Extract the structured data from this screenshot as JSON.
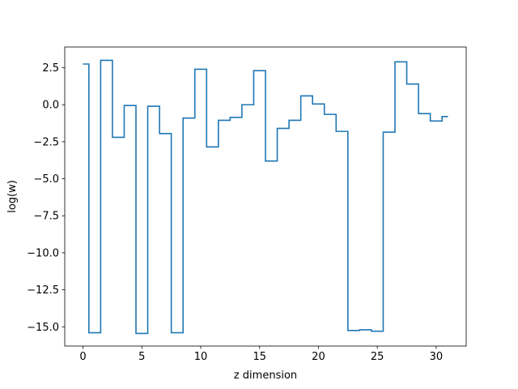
{
  "chart_data": {
    "type": "line",
    "drawstyle": "steps-mid",
    "title": "",
    "xlabel": "z dimension",
    "ylabel": "log(w)",
    "xlim": [
      -1.55,
      32.55
    ],
    "ylim": [
      -16.3,
      3.9
    ],
    "x_ticks": [
      0,
      5,
      10,
      15,
      20,
      25,
      30
    ],
    "x_tick_labels": [
      "0",
      "5",
      "10",
      "15",
      "20",
      "25",
      "30"
    ],
    "y_ticks": [
      2.5,
      0.0,
      -2.5,
      -5.0,
      -7.5,
      -10.0,
      -12.5,
      -15.0
    ],
    "y_tick_labels": [
      "2.5",
      "0.0",
      "−2.5",
      "−5.0",
      "−7.5",
      "−10.0",
      "−12.5",
      "−15.0"
    ],
    "grid": false,
    "line_color": "#1f77b4",
    "series": [
      {
        "x": [
          0,
          1,
          2,
          3,
          4,
          5,
          6,
          7,
          8,
          9,
          10,
          11,
          12,
          13,
          14,
          15,
          16,
          17,
          18,
          19,
          20,
          21,
          22,
          23,
          24,
          25,
          26,
          27,
          28,
          29,
          30,
          31
        ],
        "values": [
          2.75,
          -15.4,
          3.0,
          -2.2,
          -0.05,
          -15.45,
          -0.1,
          -1.95,
          -15.4,
          -0.9,
          2.4,
          -2.85,
          -1.05,
          -0.85,
          0.0,
          2.3,
          -3.8,
          -1.6,
          -1.05,
          0.6,
          0.05,
          -0.65,
          -1.8,
          -15.25,
          -15.2,
          -15.3,
          -1.85,
          2.9,
          1.4,
          -0.6,
          -1.1,
          -0.8
        ]
      }
    ]
  }
}
